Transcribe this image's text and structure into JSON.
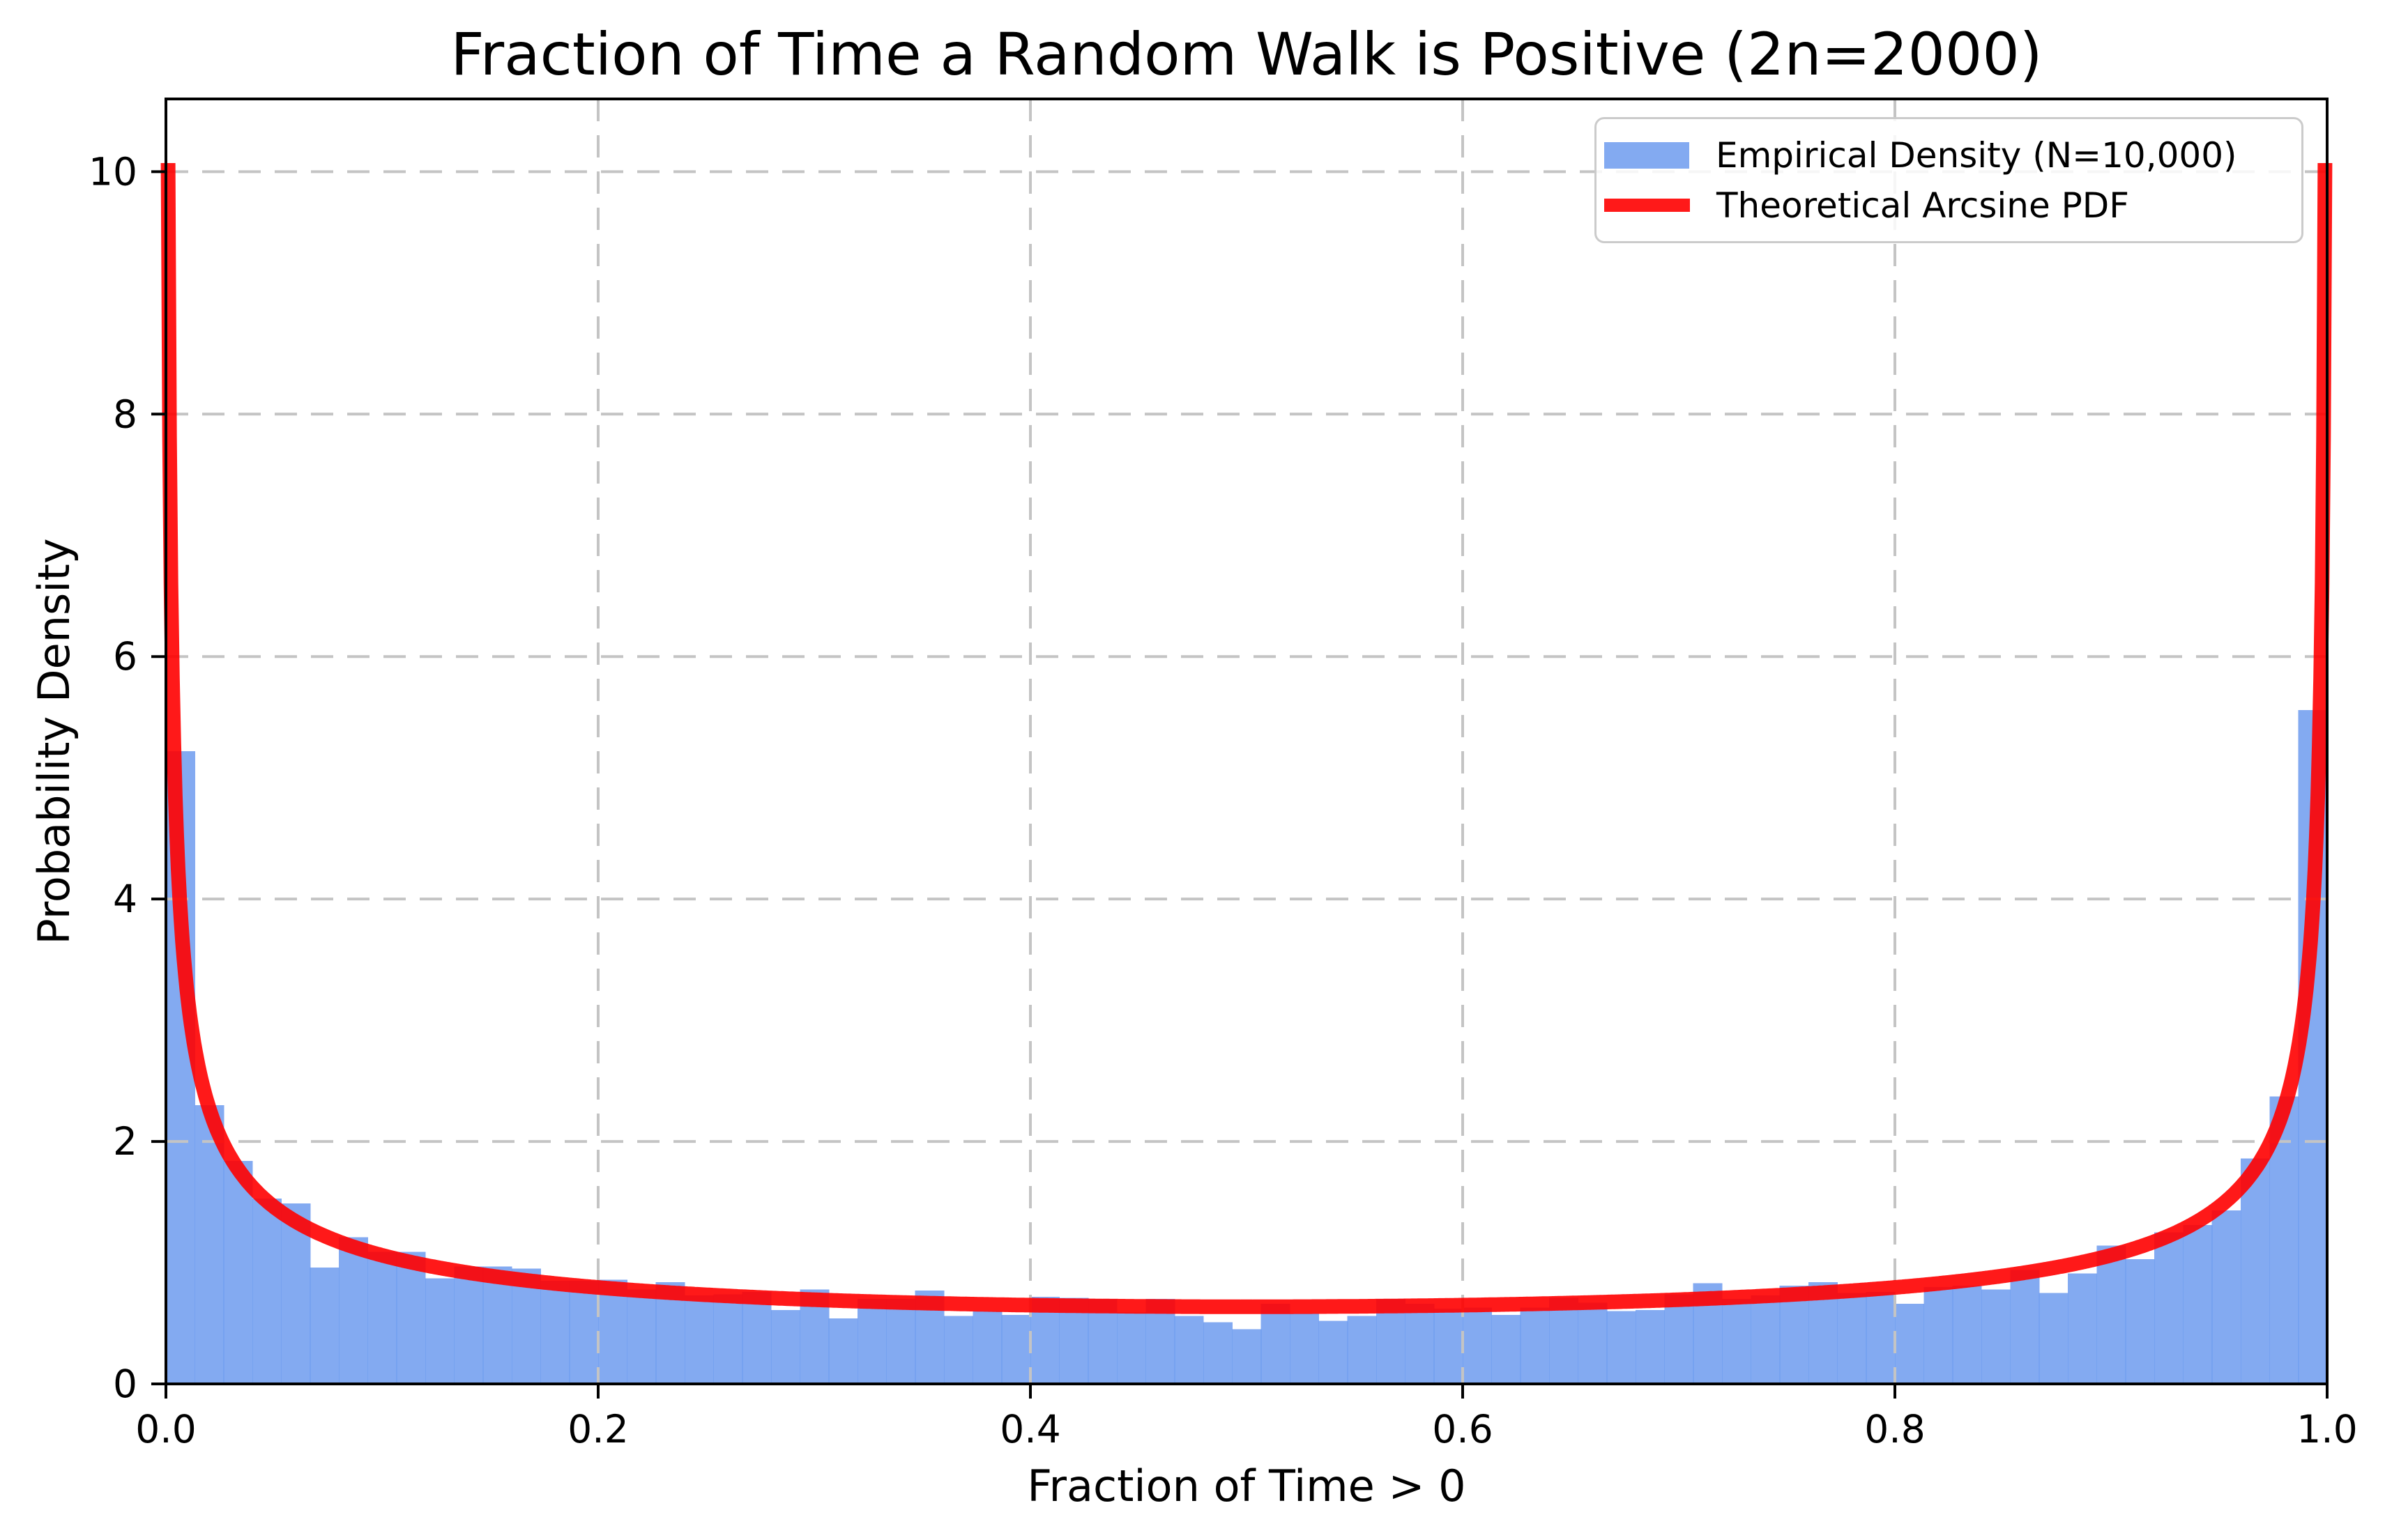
{
  "figure": {
    "title": "Fraction of Time a Random Walk is Positive (2n=2000)"
  },
  "chart_data": {
    "type": "bar",
    "subtype": "histogram-with-curve",
    "title": "Fraction of Time a Random Walk is Positive (2n=2000)",
    "xlabel": "Fraction of Time > 0",
    "ylabel": "Probability Density",
    "xlim": [
      0,
      1
    ],
    "ylim": [
      0,
      10.6
    ],
    "grid": true,
    "x_ticks": [
      {
        "value": 0.0,
        "label": "0.0"
      },
      {
        "value": 0.2,
        "label": "0.2"
      },
      {
        "value": 0.4,
        "label": "0.4"
      },
      {
        "value": 0.6,
        "label": "0.6"
      },
      {
        "value": 0.8,
        "label": "0.8"
      },
      {
        "value": 1.0,
        "label": "1.0"
      }
    ],
    "y_ticks": [
      {
        "value": 0,
        "label": "0"
      },
      {
        "value": 2,
        "label": "2"
      },
      {
        "value": 4,
        "label": "4"
      },
      {
        "value": 6,
        "label": "6"
      },
      {
        "value": 8,
        "label": "8"
      },
      {
        "value": 10,
        "label": "10"
      }
    ],
    "legend": {
      "position": "upper right",
      "entries": [
        {
          "label": "Empirical Density (N=10,000)",
          "marker": "patch",
          "color": "#6495ED"
        },
        {
          "label": "Theoretical Arcsine PDF",
          "marker": "line",
          "color": "#FF0000"
        }
      ]
    },
    "histogram": {
      "n_bins": 75,
      "range": [
        0,
        1
      ],
      "bin_width": 0.013333,
      "density": true,
      "values": [
        5.22,
        2.3,
        1.84,
        1.53,
        1.49,
        0.96,
        1.21,
        1.09,
        1.09,
        0.87,
        0.97,
        0.97,
        0.95,
        0.85,
        0.85,
        0.86,
        0.78,
        0.84,
        0.73,
        0.74,
        0.76,
        0.61,
        0.78,
        0.54,
        0.7,
        0.7,
        0.77,
        0.56,
        0.6,
        0.57,
        0.72,
        0.71,
        0.7,
        0.59,
        0.7,
        0.56,
        0.51,
        0.45,
        0.66,
        0.58,
        0.52,
        0.56,
        0.7,
        0.66,
        0.62,
        0.63,
        0.57,
        0.63,
        0.71,
        0.67,
        0.6,
        0.61,
        0.74,
        0.83,
        0.7,
        0.73,
        0.81,
        0.84,
        0.75,
        0.76,
        0.66,
        0.8,
        0.81,
        0.78,
        0.94,
        0.75,
        0.91,
        1.14,
        1.03,
        1.25,
        1.31,
        1.43,
        1.86,
        2.37,
        5.56
      ]
    },
    "curve": {
      "name": "arcsine_pdf",
      "formula": "1/(pi*sqrt(x*(1-x)))",
      "x_min": 0.001,
      "x_max": 0.999,
      "peak_value": 10.07
    },
    "colors": {
      "bar_fill": "#6495ED",
      "bar_opacity": 0.8,
      "curve": "#FF0000",
      "curve_opacity": 0.9,
      "grid": "#c4c4c4",
      "axis": "#000000",
      "legend_border": "#cbcbcb",
      "background": "#ffffff"
    }
  }
}
